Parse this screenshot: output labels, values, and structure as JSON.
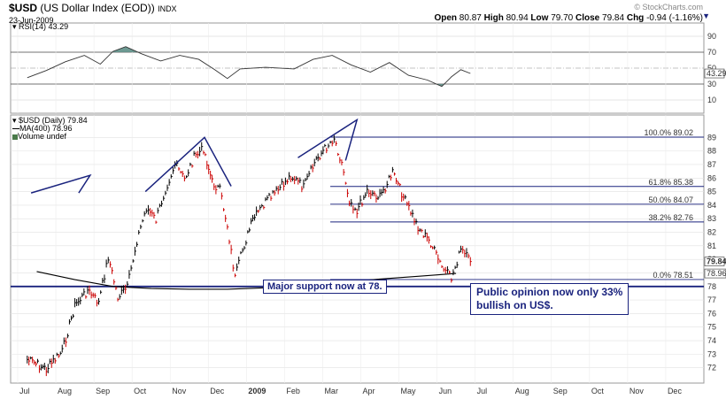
{
  "header": {
    "symbol": "$USD",
    "name": "(US Dollar Index (EOD))",
    "exchange": "INDX",
    "date": "23-Jun-2009",
    "brand": "© StockCharts.com",
    "quote": {
      "open": "80.87",
      "high": "80.94",
      "low": "79.70",
      "close": "79.84",
      "chg": "-0.94 (-1.16%)"
    },
    "quote_labels": {
      "open": "Open",
      "high": "High",
      "low": "Low",
      "close": "Close",
      "chg": "Chg"
    }
  },
  "rsi_panel": {
    "legend": "RSI(14) 43.29",
    "last_value": "43.29",
    "ticks": [
      "90",
      "70",
      "50",
      "30",
      "10"
    ]
  },
  "price_panel": {
    "legend_price": "$USD (Daily) 79.84",
    "legend_ma": "MA(400) 78.96",
    "legend_volume": "Volume undef",
    "last_price": "79.84",
    "last_ma": "78.96"
  },
  "fib_labels": [
    "100.0% 89.02",
    "61.8% 85.38",
    "50.0% 84.07",
    "38.2% 82.76",
    "0.0% 78.51"
  ],
  "annotations": {
    "support": "Major support now at 78.",
    "opinion_line1": "Public opinion now only 33%",
    "opinion_line2": "bullish on US$."
  },
  "colors": {
    "up": "#000000",
    "down": "#cc0000",
    "annotation": "#1a237e",
    "rsi_fill": "#5e8f87",
    "ma": "#000000"
  },
  "chart_data": {
    "type": "line",
    "subtype": "ohlc-bars",
    "x_tick_labels": [
      "Jul",
      "Aug",
      "Sep",
      "Oct",
      "Nov",
      "Dec",
      "2009",
      "Feb",
      "Mar",
      "Apr",
      "May",
      "Jun",
      "Jul",
      "Aug",
      "Sep",
      "Oct",
      "Nov",
      "Dec"
    ],
    "y_tick_labels": [
      "72",
      "73",
      "74",
      "75",
      "76",
      "77",
      "78",
      "79",
      "80",
      "81",
      "82",
      "83",
      "84",
      "85",
      "86",
      "87",
      "88",
      "89"
    ],
    "ylim": [
      71,
      90
    ],
    "rsi_ylim": [
      0,
      100
    ],
    "price_path": [
      [
        "Jul",
        72.6
      ],
      [
        "Jul",
        71.9
      ],
      [
        "Aug",
        73.2
      ],
      [
        "Aug",
        76.6
      ],
      [
        "Aug",
        77.7
      ],
      [
        "Sep",
        76.8
      ],
      [
        "Sep",
        80.2
      ],
      [
        "Sep",
        77.2
      ],
      [
        "Sep",
        77.9
      ],
      [
        "Oct",
        81.4
      ],
      [
        "Oct",
        83.8
      ],
      [
        "Oct",
        82.9
      ],
      [
        "Oct",
        85.2
      ],
      [
        "Nov",
        87.0
      ],
      [
        "Nov",
        85.9
      ],
      [
        "Nov",
        87.5
      ],
      [
        "Nov",
        88.2
      ],
      [
        "Dec",
        85.7
      ],
      [
        "Dec",
        85.1
      ],
      [
        "Dec",
        82.5
      ],
      [
        "Dec",
        78.6
      ],
      [
        "Dec",
        80.7
      ],
      [
        "2009",
        82.9
      ],
      [
        "2009",
        84.2
      ],
      [
        "2009",
        85.1
      ],
      [
        "Feb",
        86.2
      ],
      [
        "Feb",
        85.3
      ],
      [
        "Feb",
        87.4
      ],
      [
        "Mar",
        88.3
      ],
      [
        "Mar",
        89.0
      ],
      [
        "Mar",
        87.1
      ],
      [
        "Mar",
        84.4
      ],
      [
        "Mar",
        83.6
      ],
      [
        "Apr",
        85.1
      ],
      [
        "Apr",
        84.6
      ],
      [
        "Apr",
        86.4
      ],
      [
        "May",
        84.3
      ],
      [
        "May",
        82.4
      ],
      [
        "May",
        81.2
      ],
      [
        "Jun",
        79.4
      ],
      [
        "Jun",
        78.6
      ],
      [
        "Jun",
        80.7
      ],
      [
        "Jun",
        79.84
      ]
    ],
    "ma_path": [
      [
        "Jul",
        79.1
      ],
      [
        "Aug",
        78.5
      ],
      [
        "Sep",
        78.0
      ],
      [
        "Oct",
        77.85
      ],
      [
        "Nov",
        77.8
      ],
      [
        "Dec",
        77.8
      ],
      [
        "2009",
        77.9
      ],
      [
        "Feb",
        78.0
      ],
      [
        "Mar",
        78.3
      ],
      [
        "Apr",
        78.55
      ],
      [
        "May",
        78.75
      ],
      [
        "Jun",
        78.96
      ]
    ],
    "rsi_path": [
      [
        "Jul",
        38
      ],
      [
        "Jul",
        47
      ],
      [
        "Aug",
        58
      ],
      [
        "Aug",
        66
      ],
      [
        "Sep",
        55
      ],
      [
        "Sep",
        71
      ],
      [
        "Sep",
        77
      ],
      [
        "Oct",
        68
      ],
      [
        "Oct",
        59
      ],
      [
        "Nov",
        66
      ],
      [
        "Nov",
        61
      ],
      [
        "Dec",
        48
      ],
      [
        "Dec",
        37
      ],
      [
        "Dec",
        49
      ],
      [
        "2009",
        51
      ],
      [
        "Feb",
        49
      ],
      [
        "Feb",
        61
      ],
      [
        "Mar",
        66
      ],
      [
        "Mar",
        54
      ],
      [
        "Apr",
        45
      ],
      [
        "Apr",
        57
      ],
      [
        "May",
        41
      ],
      [
        "May",
        35
      ],
      [
        "Jun",
        27
      ],
      [
        "Jun",
        39
      ],
      [
        "Jun",
        48
      ],
      [
        "Jun",
        43.29
      ]
    ],
    "fib_levels": [
      89.02,
      85.38,
      84.07,
      82.76,
      78.51
    ],
    "support_level": 78.0,
    "pattern_lines": [
      [
        [
          "Oct",
          85.0
        ],
        [
          "Nov",
          89.0
        ],
        [
          "Dec",
          85.4
        ]
      ],
      [
        [
          "Feb",
          87.5
        ],
        [
          "Mar",
          90.3
        ],
        [
          "Mar",
          87.3
        ]
      ],
      [
        [
          "Jul",
          84.9
        ],
        [
          "Aug",
          86.2
        ],
        [
          "Aug",
          84.9
        ]
      ]
    ]
  }
}
